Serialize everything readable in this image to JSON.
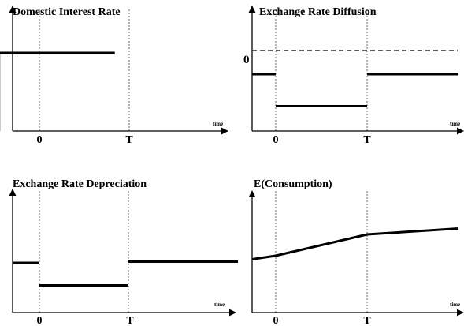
{
  "chart_data": [
    {
      "type": "line",
      "title": "Domestic Interest Rate",
      "x_axis_label": "time",
      "x_ticks": [
        "0",
        "T"
      ],
      "x_domain": [
        -0.45,
        1.14
      ],
      "y_domain": [
        0,
        1
      ],
      "segments": [
        {
          "points": [
            [
              -0.45,
              0.0
            ],
            [
              -0.45,
              0.66
            ]
          ]
        },
        {
          "points": [
            [
              -0.45,
              0.66
            ],
            [
              0.84,
              0.66
            ]
          ]
        }
      ],
      "zero_line": null
    },
    {
      "type": "line",
      "title": "Exchange Rate Diffusion",
      "x_axis_label": "time",
      "x_ticks": [
        "0",
        "T"
      ],
      "x_domain": [
        -0.26,
        2.0
      ],
      "y_domain": [
        0,
        1
      ],
      "zero_label": "0",
      "zero_line": 0.68,
      "segments": [
        {
          "points": [
            [
              -0.26,
              0.48
            ],
            [
              0.0,
              0.48
            ]
          ]
        },
        {
          "points": [
            [
              0.0,
              0.21
            ],
            [
              1.0,
              0.21
            ]
          ]
        },
        {
          "points": [
            [
              1.0,
              0.48
            ],
            [
              2.0,
              0.48
            ]
          ]
        }
      ]
    },
    {
      "type": "line",
      "title": "Exchange Rate Depreciation",
      "x_axis_label": "time",
      "x_ticks": [
        "0",
        "T"
      ],
      "x_domain": [
        -0.3,
        2.4
      ],
      "y_domain": [
        0,
        1
      ],
      "zero_line": null,
      "segments": [
        {
          "points": [
            [
              -0.3,
              0.42
            ],
            [
              0.0,
              0.42
            ]
          ]
        },
        {
          "points": [
            [
              0.0,
              0.23
            ],
            [
              1.0,
              0.23
            ]
          ]
        },
        {
          "points": [
            [
              1.0,
              0.43
            ],
            [
              2.23,
              0.43
            ]
          ]
        }
      ]
    },
    {
      "type": "line",
      "title": "E(Consumption)",
      "x_axis_label": "time",
      "x_ticks": [
        "0",
        "T"
      ],
      "x_domain": [
        -0.26,
        2.0
      ],
      "y_domain": [
        0,
        1
      ],
      "zero_line": null,
      "segments": [
        {
          "points": [
            [
              -0.26,
              0.45
            ],
            [
              0.0,
              0.48
            ],
            [
              1.0,
              0.66
            ],
            [
              2.0,
              0.71
            ]
          ]
        }
      ]
    }
  ]
}
